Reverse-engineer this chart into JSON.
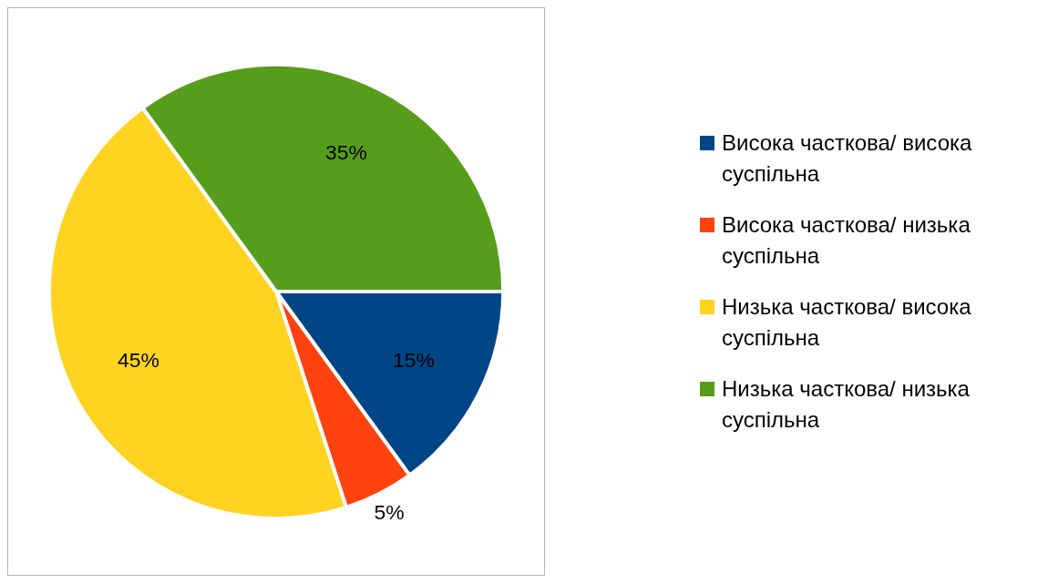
{
  "chart_data": {
    "type": "pie",
    "categories": [
      "Висока часткова/ висока суспільна",
      "Висока часткова/ низька суспільна",
      "Низька часткова/ висока суспільна",
      "Низька часткова/ низька суспільна"
    ],
    "values": [
      15,
      5,
      45,
      35
    ],
    "colors": [
      "#004586",
      "#ff420e",
      "#ffd320",
      "#579d1c"
    ],
    "data_labels": true,
    "value_labels": [
      "15%",
      "5%",
      "45%",
      "35%"
    ],
    "legend": "right"
  }
}
